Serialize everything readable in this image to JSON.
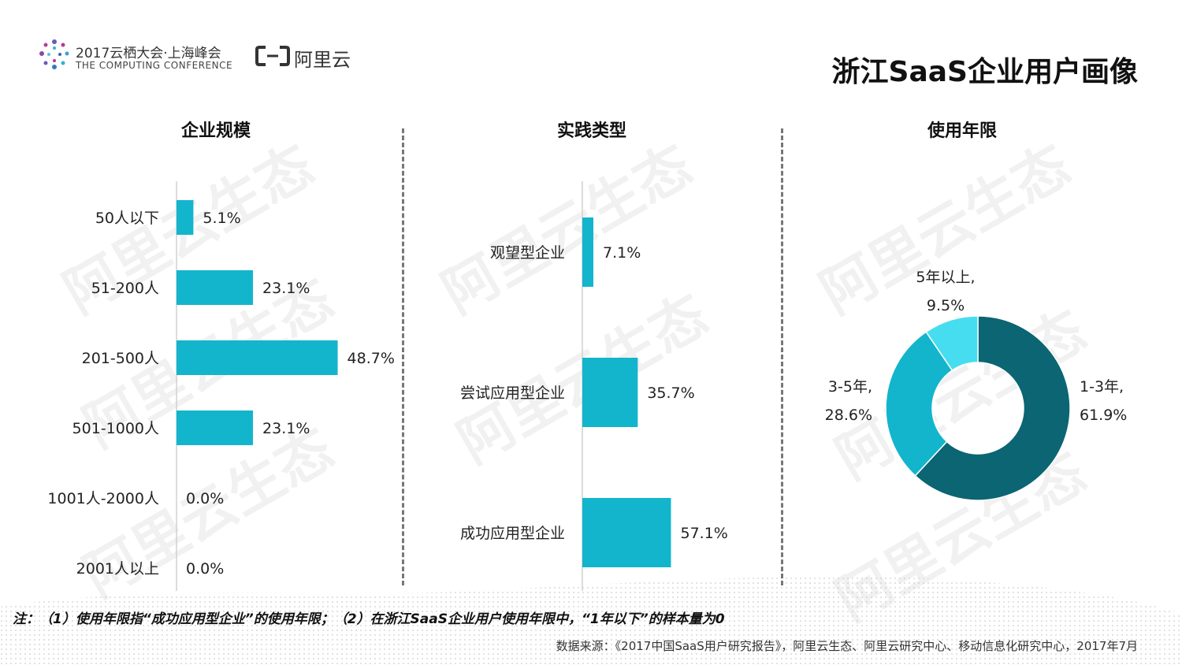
{
  "header": {
    "conference_line1": "2017云栖大会·上海峰会",
    "conference_line2": "THE COMPUTING CONFERENCE",
    "brand": "阿里云",
    "page_title": "浙江SaaS企业用户画像"
  },
  "watermark": "阿里云生态",
  "colors": {
    "bar": "#13b5cc",
    "donut": [
      "#0b6573",
      "#13b5cc",
      "#47ddf0"
    ]
  },
  "chart_data": [
    {
      "type": "bar",
      "orientation": "horizontal",
      "title": "企业规模",
      "categories": [
        "50人以下",
        "51-200人",
        "201-500人",
        "501-1000人",
        "1001人-2000人",
        "2001人以上"
      ],
      "values": [
        5.1,
        23.1,
        48.7,
        23.1,
        0.0,
        0.0
      ],
      "value_labels": [
        "5.1%",
        "23.1%",
        "48.7%",
        "23.1%",
        "0.0%",
        "0.0%"
      ],
      "unit": "%"
    },
    {
      "type": "bar",
      "orientation": "horizontal",
      "title": "实践类型",
      "categories": [
        "观望型企业",
        "尝试应用型企业",
        "成功应用型企业"
      ],
      "values": [
        7.1,
        35.7,
        57.1
      ],
      "value_labels": [
        "7.1%",
        "35.7%",
        "57.1%"
      ],
      "unit": "%"
    },
    {
      "type": "pie",
      "style": "donut",
      "title": "使用年限",
      "categories": [
        "1-3年",
        "3-5年",
        "5年以上"
      ],
      "values": [
        61.9,
        28.6,
        9.5
      ],
      "label_lines": [
        [
          "1-3年,",
          "61.9%"
        ],
        [
          "3-5年,",
          "28.6%"
        ],
        [
          "5年以上,",
          "9.5%"
        ]
      ]
    }
  ],
  "footer": {
    "note": "注：（1）使用年限指“成功应用型企业”的使用年限；（2）在浙江SaaS企业用户使用年限中，“1年以下”的样本量为0",
    "source": "数据来源：《2017中国SaaS用户研究报告》，阿里云生态、阿里云研究中心、移动信息化研究中心，2017年7月"
  }
}
